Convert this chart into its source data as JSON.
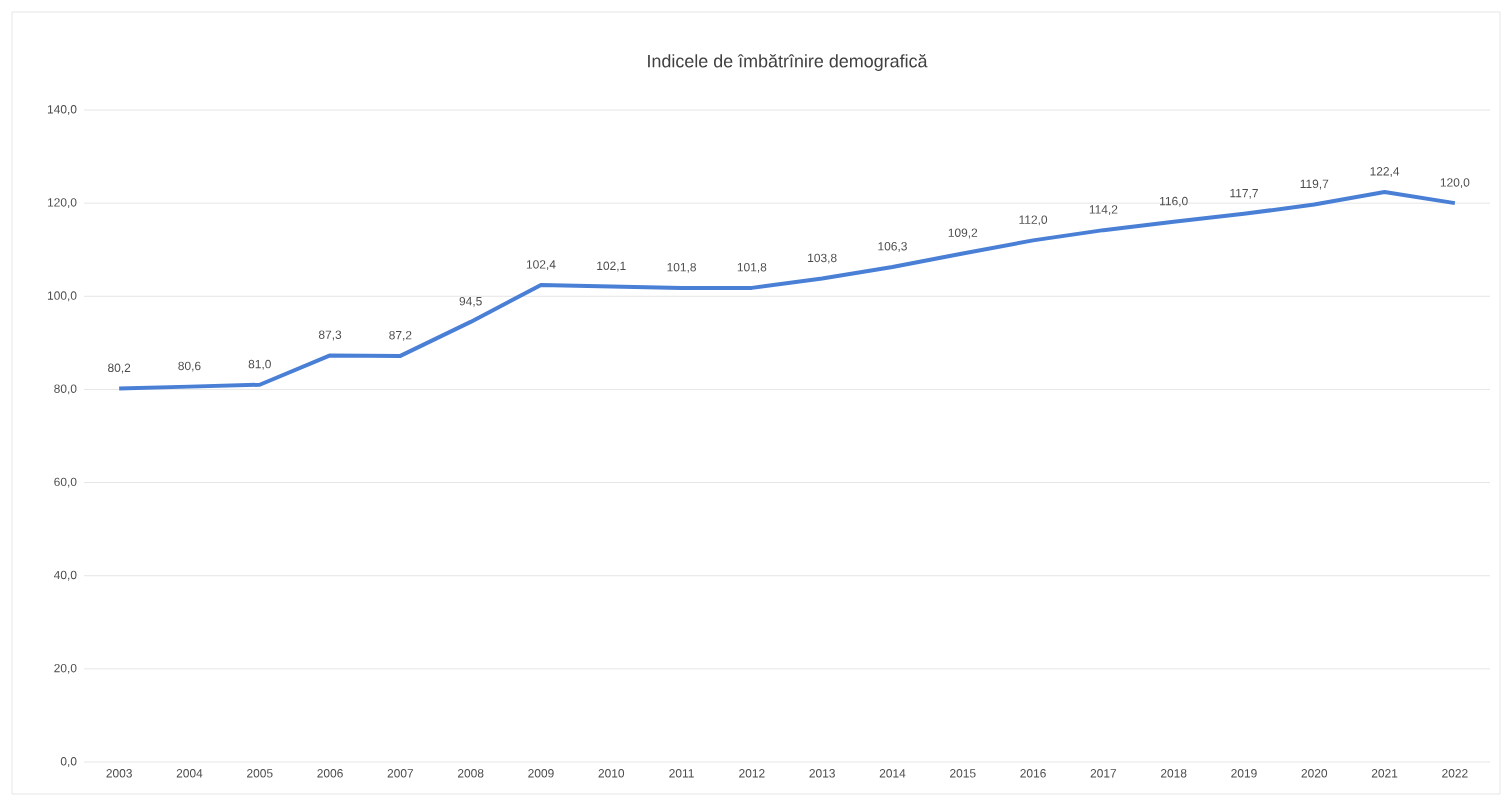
{
  "chart_data": {
    "type": "line",
    "title": "Indicele de îmbătrînire demografică",
    "categories": [
      "2003",
      "2004",
      "2005",
      "2006",
      "2007",
      "2008",
      "2009",
      "2010",
      "2011",
      "2012",
      "2013",
      "2014",
      "2015",
      "2016",
      "2017",
      "2018",
      "2019",
      "2020",
      "2021",
      "2022"
    ],
    "series": [
      {
        "color": "#4a7fd6",
        "values": [
          80.2,
          80.6,
          81.0,
          87.3,
          87.2,
          94.5,
          102.4,
          102.1,
          101.8,
          101.8,
          103.8,
          106.3,
          109.2,
          112.0,
          114.2,
          116.0,
          117.7,
          119.7,
          122.4,
          120.0
        ],
        "value_labels": [
          "80,2",
          "80,6",
          "81,0",
          "87,3",
          "87,2",
          "94,5",
          "102,4",
          "102,1",
          "101,8",
          "101,8",
          "103,8",
          "106,3",
          "109,2",
          "112,0",
          "114,2",
          "116,0",
          "117,7",
          "119,7",
          "122,4",
          "120,0"
        ]
      }
    ],
    "ylim": [
      0,
      140
    ],
    "yticks": [
      {
        "value": 0,
        "label": "0,0"
      },
      {
        "value": 20,
        "label": "20,0"
      },
      {
        "value": 40,
        "label": "40,0"
      },
      {
        "value": 60,
        "label": "60,0"
      },
      {
        "value": 80,
        "label": "80,0"
      },
      {
        "value": 100,
        "label": "100,0"
      },
      {
        "value": 120,
        "label": "120,0"
      },
      {
        "value": 140,
        "label": "140,0"
      }
    ],
    "grid": "y",
    "marker": "none",
    "line_style": "solid"
  }
}
